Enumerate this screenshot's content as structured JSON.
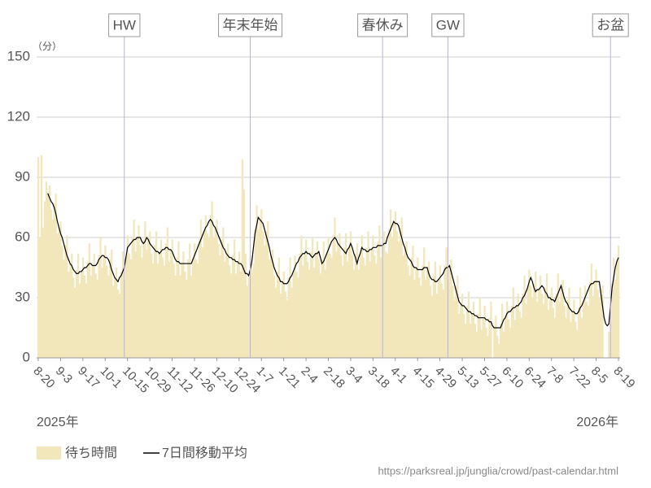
{
  "chart_data": {
    "type": "bar",
    "y_unit_label": "（分）",
    "ylim": [
      0,
      150
    ],
    "yticks": [
      0,
      30,
      60,
      90,
      120,
      150
    ],
    "grid": true,
    "categories": [
      "8-20",
      null,
      null,
      null,
      null,
      null,
      null,
      null,
      null,
      null,
      null,
      null,
      null,
      null,
      "9-3",
      null,
      null,
      null,
      null,
      null,
      null,
      null,
      null,
      null,
      null,
      null,
      null,
      null,
      "9-17",
      null,
      null,
      null,
      null,
      null,
      null,
      null,
      null,
      null,
      null,
      null,
      null,
      null,
      "10-1",
      null,
      null,
      null,
      null,
      null,
      null,
      null,
      null,
      null,
      null,
      null,
      null,
      null,
      "10-15",
      null,
      null,
      null,
      null,
      null,
      null,
      null,
      null,
      null,
      null,
      null,
      null,
      null,
      "10-29",
      null,
      null,
      null,
      null,
      null,
      null,
      null,
      null,
      null,
      null,
      null,
      null,
      null,
      "11-12",
      null,
      null,
      null,
      null,
      null,
      null,
      null,
      null,
      null,
      null,
      null,
      null,
      null,
      "11-26",
      null,
      null,
      null,
      null,
      null,
      null,
      null,
      null,
      null,
      null,
      null,
      null,
      null,
      "12-10",
      null,
      null,
      null,
      null,
      null,
      null,
      null,
      null,
      null,
      null,
      null,
      null,
      null,
      "12-24",
      null,
      null,
      null,
      null,
      null,
      null,
      null,
      null,
      null,
      null,
      null,
      null,
      null,
      "1-7",
      null,
      null,
      null,
      null,
      null,
      null,
      null,
      null,
      null,
      null,
      null,
      null,
      null,
      "1-21",
      null,
      null,
      null,
      null,
      null,
      null,
      null,
      null,
      null,
      null,
      null,
      null,
      null,
      "2-4",
      null,
      null,
      null,
      null,
      null,
      null,
      null,
      null,
      null,
      null,
      null,
      null,
      null,
      "2-18",
      null,
      null,
      null,
      null,
      null,
      null,
      null,
      null,
      null,
      null,
      null,
      null,
      null,
      "3-4",
      null,
      null,
      null,
      null,
      null,
      null,
      null,
      null,
      null,
      null,
      null,
      null,
      null,
      "3-18",
      null,
      null,
      null,
      null,
      null,
      null,
      null,
      null,
      null,
      null,
      null,
      null,
      null,
      "4-1",
      null,
      null,
      null,
      null,
      null,
      null,
      null,
      null,
      null,
      null,
      null,
      null,
      null,
      "4-15",
      null,
      null,
      null,
      null,
      null,
      null,
      null,
      null,
      null,
      null,
      null,
      null,
      null,
      "4-29",
      null,
      null,
      null,
      null,
      null,
      null,
      null,
      null,
      null,
      null,
      null,
      null,
      null,
      "5-13",
      null,
      null,
      null,
      null,
      null,
      null,
      null,
      null,
      null,
      null,
      null,
      null,
      null,
      "5-27",
      null,
      null,
      null,
      null,
      null,
      null,
      null,
      null,
      null,
      null,
      null,
      null,
      null,
      "6-10",
      null,
      null,
      null,
      null,
      null,
      null,
      null,
      null,
      null,
      null,
      null,
      null,
      null,
      "6-24",
      null,
      null,
      null,
      null,
      null,
      null,
      null,
      null,
      null,
      null,
      null,
      null,
      null,
      "7-8",
      null,
      null,
      null,
      null,
      null,
      null,
      null,
      null,
      null,
      null,
      null,
      null,
      null,
      "7-22",
      null,
      null,
      null,
      null,
      null,
      null,
      null,
      null,
      null,
      null,
      null,
      null,
      null,
      "8-5",
      null,
      null,
      null,
      null,
      null,
      null,
      null,
      null,
      null,
      null,
      null,
      null,
      null,
      "8-19"
    ],
    "series": [
      {
        "name": "待ち時間",
        "type": "bar",
        "color": "#f2e6bb",
        "values": [
          100,
          60,
          101,
          65,
          78,
          88,
          82,
          86,
          74,
          69,
          77,
          82,
          62,
          65,
          68,
          56,
          49,
          56,
          61,
          43,
          47,
          52,
          40,
          35,
          44,
          52,
          37,
          43,
          50,
          41,
          37,
          48,
          57,
          41,
          46,
          52,
          42,
          39,
          51,
          60,
          45,
          51,
          56,
          46,
          41,
          49,
          54,
          36,
          40,
          45,
          34,
          32,
          43,
          53,
          39,
          50,
          61,
          52,
          49,
          60,
          69,
          53,
          60,
          66,
          56,
          50,
          59,
          68,
          54,
          59,
          63,
          52,
          47,
          56,
          63,
          47,
          52,
          59,
          50,
          46,
          57,
          65,
          48,
          54,
          59,
          47,
          41,
          50,
          58,
          41,
          47,
          53,
          43,
          39,
          49,
          57,
          41,
          49,
          57,
          49,
          47,
          59,
          69,
          55,
          63,
          71,
          62,
          60,
          71,
          78,
          60,
          65,
          69,
          57,
          51,
          59,
          65,
          48,
          52,
          57,
          46,
          42,
          51,
          59,
          42,
          48,
          53,
          43,
          99,
          84,
          52,
          36,
          41,
          50,
          44,
          47,
          64,
          76,
          64,
          69,
          74,
          63,
          56,
          63,
          68,
          49,
          51,
          54,
          41,
          35,
          43,
          50,
          32,
          38,
          43,
          33,
          29,
          40,
          50,
          35,
          43,
          51,
          43,
          40,
          52,
          61,
          46,
          52,
          59,
          48,
          44,
          53,
          60,
          45,
          52,
          58,
          49,
          42,
          49,
          58,
          44,
          52,
          60,
          52,
          50,
          61,
          70,
          53,
          57,
          62,
          51,
          46,
          55,
          62,
          48,
          55,
          63,
          51,
          44,
          52,
          57,
          44,
          52,
          61,
          50,
          46,
          55,
          63,
          48,
          54,
          61,
          51,
          47,
          58,
          66,
          50,
          56,
          63,
          53,
          52,
          64,
          74,
          60,
          68,
          73,
          63,
          58,
          65,
          70,
          51,
          55,
          58,
          46,
          41,
          50,
          56,
          39,
          45,
          50,
          40,
          36,
          46,
          55,
          39,
          45,
          48,
          36,
          31,
          41,
          48,
          32,
          39,
          46,
          37,
          34,
          46,
          55,
          39,
          46,
          49,
          36,
          29,
          36,
          41,
          22,
          27,
          32,
          22,
          17,
          26,
          33,
          17,
          22,
          28,
          17,
          13,
          22,
          30,
          14,
          20,
          26,
          15,
          11,
          20,
          28,
          0,
          15,
          21,
          11,
          7,
          17,
          27,
          13,
          20,
          28,
          19,
          15,
          26,
          35,
          19,
          26,
          32,
          23,
          20,
          32,
          41,
          27,
          35,
          44,
          36,
          30,
          37,
          43,
          28,
          34,
          41,
          32,
          27,
          35,
          42,
          24,
          30,
          35,
          25,
          20,
          32,
          42,
          28,
          36,
          39,
          26,
          20,
          29,
          35,
          18,
          23,
          29,
          18,
          14,
          25,
          35,
          20,
          28,
          36,
          28,
          26,
          38,
          47,
          31,
          38,
          44,
          34,
          30,
          34,
          36,
          0,
          0,
          0,
          13,
          18,
          37,
          50,
          39,
          48,
          56
        ]
      },
      {
        "name": "7日間移動平均",
        "type": "line",
        "color": "#000000",
        "values": [
          null,
          null,
          null,
          null,
          null,
          null,
          82,
          80,
          78,
          77,
          75,
          72,
          68,
          65,
          62,
          60,
          57,
          54,
          51,
          49,
          47,
          46,
          44,
          43,
          42,
          42,
          43,
          43,
          44,
          45,
          45,
          46,
          47,
          47,
          46,
          46,
          46,
          47,
          49,
          50,
          51,
          51,
          50,
          50,
          49,
          47,
          44,
          42,
          40,
          39,
          38,
          40,
          41,
          43,
          45,
          50,
          55,
          56,
          57,
          58,
          59,
          59,
          60,
          60,
          60,
          58,
          57,
          58,
          60,
          59,
          57,
          56,
          55,
          54,
          53,
          53,
          52,
          53,
          54,
          54,
          55,
          55,
          54,
          54,
          53,
          51,
          49,
          48,
          48,
          47,
          47,
          47,
          47,
          47,
          47,
          47,
          47,
          49,
          51,
          53,
          55,
          57,
          59,
          61,
          63,
          65,
          66,
          68,
          69,
          68,
          66,
          65,
          63,
          61,
          59,
          57,
          55,
          54,
          52,
          51,
          50,
          50,
          49,
          49,
          48,
          48,
          47,
          47,
          46,
          44,
          42,
          42,
          41,
          44,
          48,
          55,
          62,
          66,
          70,
          69,
          68,
          67,
          64,
          61,
          58,
          55,
          51,
          48,
          45,
          43,
          41,
          40,
          38,
          38,
          37,
          37,
          37,
          38,
          40,
          41,
          43,
          45,
          47,
          48,
          50,
          51,
          52,
          52,
          53,
          52,
          52,
          51,
          50,
          51,
          52,
          52,
          53,
          50,
          47,
          48,
          50,
          52,
          54,
          56,
          58,
          59,
          60,
          59,
          57,
          56,
          55,
          54,
          53,
          52,
          54,
          55,
          57,
          55,
          52,
          50,
          47,
          50,
          52,
          55,
          54,
          54,
          53,
          53,
          54,
          54,
          55,
          55,
          55,
          56,
          56,
          56,
          56,
          57,
          57,
          60,
          62,
          64,
          66,
          68,
          67,
          67,
          66,
          63,
          60,
          57,
          55,
          52,
          50,
          49,
          48,
          46,
          45,
          45,
          44,
          44,
          44,
          44,
          45,
          45,
          45,
          42,
          40,
          39,
          39,
          38,
          38,
          39,
          40,
          41,
          42,
          44,
          45,
          45,
          46,
          43,
          40,
          37,
          34,
          31,
          28,
          27,
          26,
          26,
          25,
          24,
          23,
          23,
          22,
          22,
          21,
          21,
          20,
          20,
          20,
          20,
          20,
          19,
          19,
          18,
          18,
          16,
          15,
          15,
          15,
          15,
          15,
          17,
          19,
          20,
          22,
          23,
          23,
          24,
          25,
          25,
          26,
          26,
          27,
          28,
          30,
          31,
          33,
          35,
          38,
          40,
          38,
          35,
          33,
          34,
          34,
          35,
          36,
          35,
          33,
          32,
          30,
          30,
          29,
          29,
          28,
          30,
          32,
          34,
          36,
          33,
          30,
          28,
          27,
          25,
          24,
          23,
          23,
          22,
          22,
          23,
          25,
          26,
          28,
          30,
          32,
          34,
          36,
          37,
          37,
          38,
          38,
          38,
          38,
          32,
          26,
          20,
          17,
          16,
          17,
          26,
          35,
          40,
          45,
          48,
          50
        ]
      }
    ],
    "annotations": [
      {
        "label": "HW",
        "index": 54
      },
      {
        "label": "年末年始",
        "index": 133
      },
      {
        "label": "春休み",
        "index": 216
      },
      {
        "label": "GW",
        "index": 257
      },
      {
        "label": "お盆",
        "index": 359
      }
    ],
    "year_labels": [
      "2025年",
      "2026年"
    ],
    "source": "https://parksreal.jp/junglia/crowd/past-calendar.html"
  }
}
